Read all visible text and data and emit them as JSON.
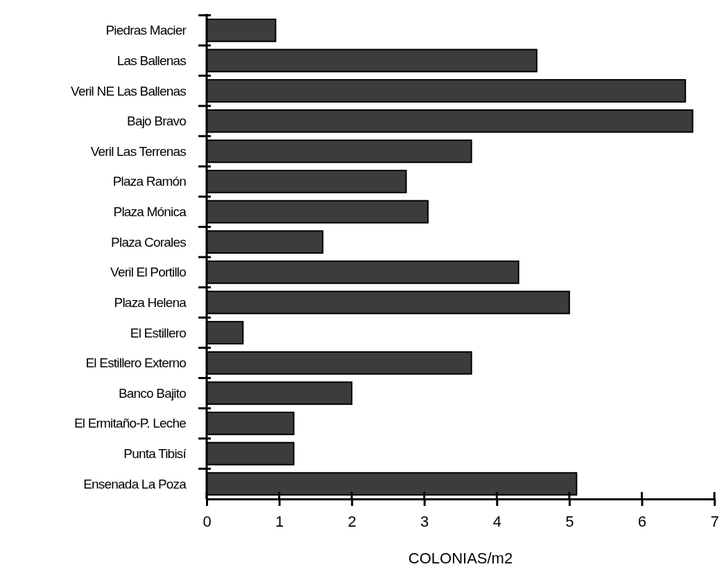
{
  "chart_data": {
    "type": "bar",
    "orientation": "horizontal",
    "xlabel": "COLONIAS/m2",
    "categories": [
      "Piedras Macier",
      "Las Ballenas",
      "Veril NE Las Ballenas",
      "Bajo Bravo",
      "Veril Las Terrenas",
      "Plaza Ramón",
      "Plaza Mónica",
      "Plaza Corales",
      "Veril El Portillo",
      "Plaza Helena",
      "El Estillero",
      "El Estillero Externo",
      "Banco Bajito",
      "El Ermitaño-P. Leche",
      "Punta Tibisí",
      "Ensenada La Poza"
    ],
    "values": [
      0.95,
      4.55,
      6.6,
      6.7,
      3.65,
      2.75,
      3.05,
      1.6,
      4.3,
      5.0,
      0.5,
      3.65,
      2.0,
      1.2,
      1.2,
      5.1
    ],
    "color": "#3c3c3c",
    "xlim": [
      0,
      7
    ],
    "xticks": [
      0,
      1,
      2,
      3,
      4,
      5,
      6,
      7
    ],
    "grid": false
  }
}
